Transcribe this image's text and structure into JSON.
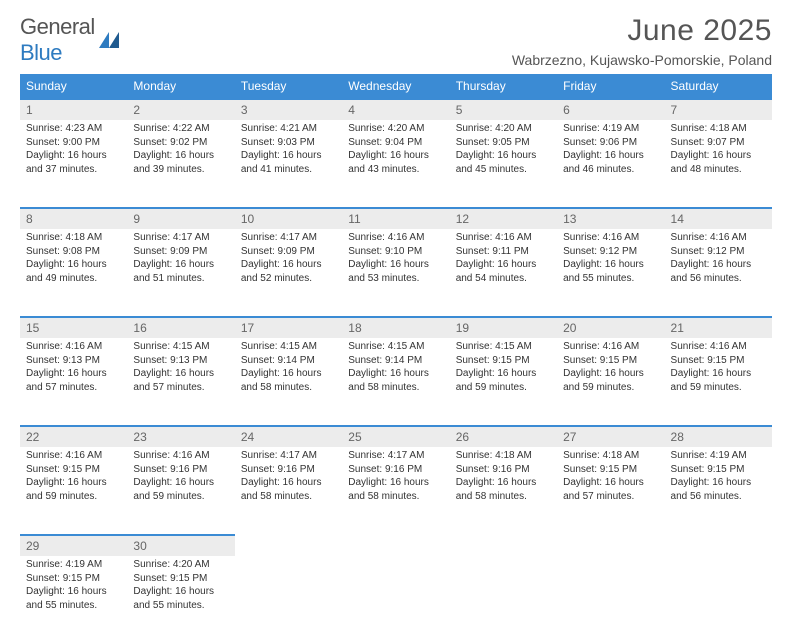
{
  "logo": {
    "text1": "General",
    "text2": "Blue"
  },
  "title": "June 2025",
  "location": "Wabrzezno, Kujawsko-Pomorskie, Poland",
  "weekdays": [
    "Sunday",
    "Monday",
    "Tuesday",
    "Wednesday",
    "Thursday",
    "Friday",
    "Saturday"
  ],
  "colors": {
    "header_bg": "#3b8bd4",
    "header_text": "#ffffff",
    "daynum_bg": "#ececec",
    "border": "#3b8bd4",
    "body_text": "#333333",
    "title_text": "#555555",
    "logo_gray": "#555555",
    "logo_blue": "#2e7bc0"
  },
  "weeks": [
    [
      {
        "n": "1",
        "sr": "4:23 AM",
        "ss": "9:00 PM",
        "dl": "16 hours and 37 minutes."
      },
      {
        "n": "2",
        "sr": "4:22 AM",
        "ss": "9:02 PM",
        "dl": "16 hours and 39 minutes."
      },
      {
        "n": "3",
        "sr": "4:21 AM",
        "ss": "9:03 PM",
        "dl": "16 hours and 41 minutes."
      },
      {
        "n": "4",
        "sr": "4:20 AM",
        "ss": "9:04 PM",
        "dl": "16 hours and 43 minutes."
      },
      {
        "n": "5",
        "sr": "4:20 AM",
        "ss": "9:05 PM",
        "dl": "16 hours and 45 minutes."
      },
      {
        "n": "6",
        "sr": "4:19 AM",
        "ss": "9:06 PM",
        "dl": "16 hours and 46 minutes."
      },
      {
        "n": "7",
        "sr": "4:18 AM",
        "ss": "9:07 PM",
        "dl": "16 hours and 48 minutes."
      }
    ],
    [
      {
        "n": "8",
        "sr": "4:18 AM",
        "ss": "9:08 PM",
        "dl": "16 hours and 49 minutes."
      },
      {
        "n": "9",
        "sr": "4:17 AM",
        "ss": "9:09 PM",
        "dl": "16 hours and 51 minutes."
      },
      {
        "n": "10",
        "sr": "4:17 AM",
        "ss": "9:09 PM",
        "dl": "16 hours and 52 minutes."
      },
      {
        "n": "11",
        "sr": "4:16 AM",
        "ss": "9:10 PM",
        "dl": "16 hours and 53 minutes."
      },
      {
        "n": "12",
        "sr": "4:16 AM",
        "ss": "9:11 PM",
        "dl": "16 hours and 54 minutes."
      },
      {
        "n": "13",
        "sr": "4:16 AM",
        "ss": "9:12 PM",
        "dl": "16 hours and 55 minutes."
      },
      {
        "n": "14",
        "sr": "4:16 AM",
        "ss": "9:12 PM",
        "dl": "16 hours and 56 minutes."
      }
    ],
    [
      {
        "n": "15",
        "sr": "4:16 AM",
        "ss": "9:13 PM",
        "dl": "16 hours and 57 minutes."
      },
      {
        "n": "16",
        "sr": "4:15 AM",
        "ss": "9:13 PM",
        "dl": "16 hours and 57 minutes."
      },
      {
        "n": "17",
        "sr": "4:15 AM",
        "ss": "9:14 PM",
        "dl": "16 hours and 58 minutes."
      },
      {
        "n": "18",
        "sr": "4:15 AM",
        "ss": "9:14 PM",
        "dl": "16 hours and 58 minutes."
      },
      {
        "n": "19",
        "sr": "4:15 AM",
        "ss": "9:15 PM",
        "dl": "16 hours and 59 minutes."
      },
      {
        "n": "20",
        "sr": "4:16 AM",
        "ss": "9:15 PM",
        "dl": "16 hours and 59 minutes."
      },
      {
        "n": "21",
        "sr": "4:16 AM",
        "ss": "9:15 PM",
        "dl": "16 hours and 59 minutes."
      }
    ],
    [
      {
        "n": "22",
        "sr": "4:16 AM",
        "ss": "9:15 PM",
        "dl": "16 hours and 59 minutes."
      },
      {
        "n": "23",
        "sr": "4:16 AM",
        "ss": "9:16 PM",
        "dl": "16 hours and 59 minutes."
      },
      {
        "n": "24",
        "sr": "4:17 AM",
        "ss": "9:16 PM",
        "dl": "16 hours and 58 minutes."
      },
      {
        "n": "25",
        "sr": "4:17 AM",
        "ss": "9:16 PM",
        "dl": "16 hours and 58 minutes."
      },
      {
        "n": "26",
        "sr": "4:18 AM",
        "ss": "9:16 PM",
        "dl": "16 hours and 58 minutes."
      },
      {
        "n": "27",
        "sr": "4:18 AM",
        "ss": "9:15 PM",
        "dl": "16 hours and 57 minutes."
      },
      {
        "n": "28",
        "sr": "4:19 AM",
        "ss": "9:15 PM",
        "dl": "16 hours and 56 minutes."
      }
    ],
    [
      {
        "n": "29",
        "sr": "4:19 AM",
        "ss": "9:15 PM",
        "dl": "16 hours and 55 minutes."
      },
      {
        "n": "30",
        "sr": "4:20 AM",
        "ss": "9:15 PM",
        "dl": "16 hours and 55 minutes."
      },
      null,
      null,
      null,
      null,
      null
    ]
  ],
  "labels": {
    "sunrise": "Sunrise: ",
    "sunset": "Sunset: ",
    "daylight": "Daylight: "
  }
}
